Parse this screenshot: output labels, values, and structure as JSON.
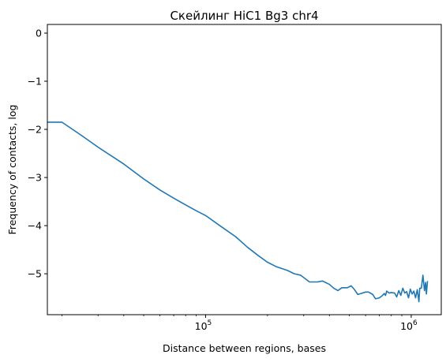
{
  "chart_data": {
    "type": "line",
    "title": "Скейлинг HiC1 Bg3 chr4",
    "xlabel": "Distance between regions, bases",
    "ylabel": "Frequency of contacts, log",
    "x_scale": "log",
    "xlim": [
      17000,
      1400000
    ],
    "ylim": [
      -5.85,
      0.18
    ],
    "x_ticks": [
      {
        "value": 100000,
        "base": "10",
        "exp": "5"
      },
      {
        "value": 1000000,
        "base": "10",
        "exp": "6"
      }
    ],
    "y_ticks": [
      {
        "value": 0,
        "label": "0"
      },
      {
        "value": -1,
        "label": "−1"
      },
      {
        "value": -2,
        "label": "−2"
      },
      {
        "value": -3,
        "label": "−3"
      },
      {
        "value": -4,
        "label": "−4"
      },
      {
        "value": -5,
        "label": "−5"
      }
    ],
    "grid": false,
    "series": [
      {
        "color": "#1f77b4",
        "points": [
          [
            17000,
            -1.85
          ],
          [
            20000,
            -1.85
          ],
          [
            25000,
            -2.13
          ],
          [
            30000,
            -2.37
          ],
          [
            40000,
            -2.72
          ],
          [
            50000,
            -3.03
          ],
          [
            60000,
            -3.26
          ],
          [
            70000,
            -3.43
          ],
          [
            80000,
            -3.57
          ],
          [
            90000,
            -3.69
          ],
          [
            100000,
            -3.79
          ],
          [
            120000,
            -4.03
          ],
          [
            140000,
            -4.23
          ],
          [
            160000,
            -4.45
          ],
          [
            180000,
            -4.62
          ],
          [
            200000,
            -4.76
          ],
          [
            220000,
            -4.85
          ],
          [
            250000,
            -4.93
          ],
          [
            270000,
            -5.0
          ],
          [
            290000,
            -5.03
          ],
          [
            320000,
            -5.17
          ],
          [
            350000,
            -5.17
          ],
          [
            370000,
            -5.15
          ],
          [
            400000,
            -5.22
          ],
          [
            420000,
            -5.3
          ],
          [
            440000,
            -5.35
          ],
          [
            460000,
            -5.29
          ],
          [
            490000,
            -5.29
          ],
          [
            510000,
            -5.25
          ],
          [
            530000,
            -5.33
          ],
          [
            550000,
            -5.43
          ],
          [
            570000,
            -5.41
          ],
          [
            600000,
            -5.38
          ],
          [
            620000,
            -5.38
          ],
          [
            650000,
            -5.43
          ],
          [
            670000,
            -5.52
          ],
          [
            700000,
            -5.5
          ],
          [
            720000,
            -5.46
          ],
          [
            740000,
            -5.41
          ],
          [
            750000,
            -5.45
          ],
          [
            760000,
            -5.36
          ],
          [
            780000,
            -5.4
          ],
          [
            800000,
            -5.39
          ],
          [
            830000,
            -5.4
          ],
          [
            850000,
            -5.48
          ],
          [
            870000,
            -5.35
          ],
          [
            890000,
            -5.45
          ],
          [
            910000,
            -5.3
          ],
          [
            930000,
            -5.4
          ],
          [
            950000,
            -5.37
          ],
          [
            970000,
            -5.5
          ],
          [
            990000,
            -5.32
          ],
          [
            1010000,
            -5.42
          ],
          [
            1030000,
            -5.36
          ],
          [
            1050000,
            -5.5
          ],
          [
            1070000,
            -5.33
          ],
          [
            1090000,
            -5.58
          ],
          [
            1100000,
            -5.3
          ],
          [
            1120000,
            -5.3
          ],
          [
            1140000,
            -5.03
          ],
          [
            1160000,
            -5.35
          ],
          [
            1175000,
            -5.18
          ],
          [
            1185000,
            -5.42
          ],
          [
            1200000,
            -5.15
          ]
        ]
      }
    ]
  }
}
